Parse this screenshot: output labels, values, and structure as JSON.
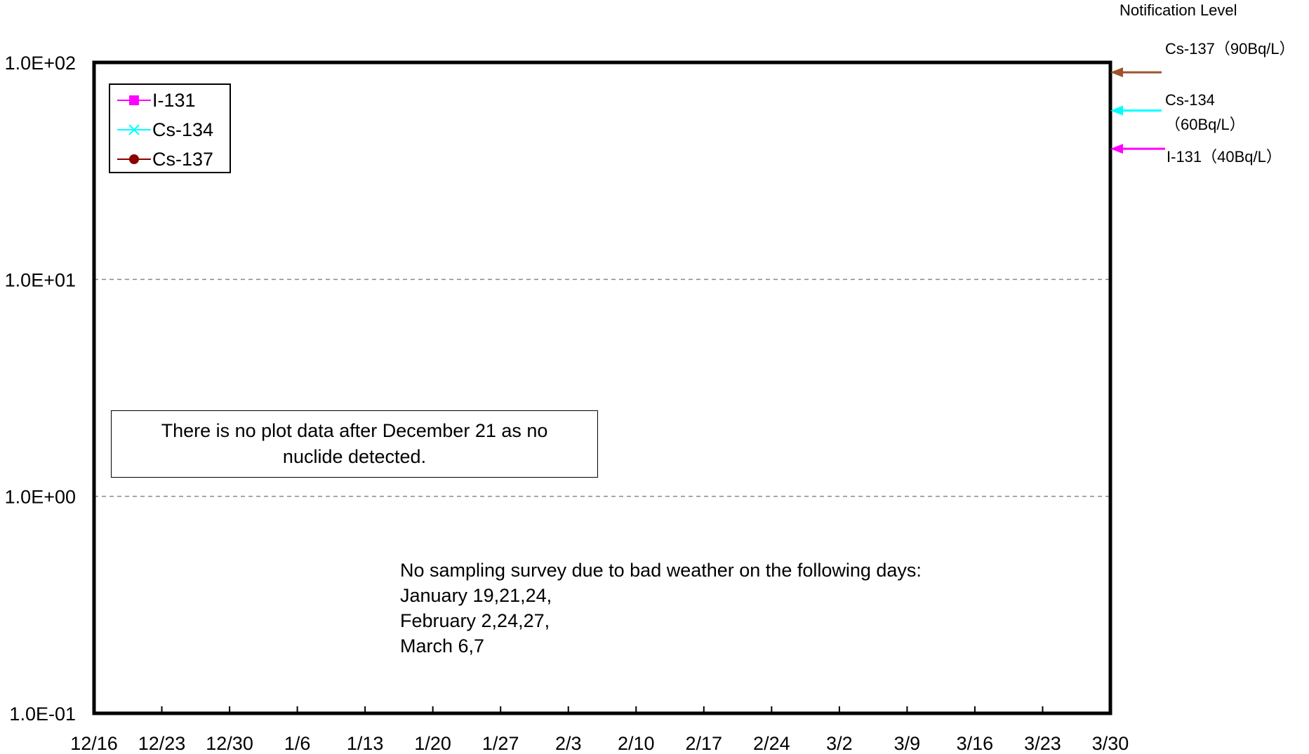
{
  "chart_data": {
    "type": "line",
    "scale": "log",
    "ylim": [
      0.1,
      100
    ],
    "y_ticks": [
      "1.0E-01",
      "1.0E+00",
      "1.0E+01",
      "1.0E+02"
    ],
    "x_ticks": [
      "12/16",
      "12/23",
      "12/30",
      "1/6",
      "1/13",
      "1/20",
      "1/27",
      "2/3",
      "2/10",
      "2/17",
      "2/24",
      "3/2",
      "3/9",
      "3/16",
      "3/23",
      "3/30"
    ],
    "grid": "horizontal dashed",
    "series": [
      {
        "name": "I-131",
        "color": "#ff00ff",
        "marker": "square",
        "values": []
      },
      {
        "name": "Cs-134",
        "color": "#00ffff",
        "marker": "x",
        "values": []
      },
      {
        "name": "Cs-137",
        "color": "#8b0000",
        "marker": "circle",
        "values": []
      }
    ],
    "legend": "top-left",
    "notification_levels": {
      "title": "Notification Level",
      "items": [
        {
          "label": "Cs-137（90Bq/L）",
          "value": 90,
          "color": "#a0522d"
        },
        {
          "label_line1": "Cs-134",
          "label_line2": "（60Bq/L）",
          "value": 60,
          "color": "#00ffff"
        },
        {
          "label": "I-131（40Bq/L）",
          "value": 40,
          "color": "#ff00ff"
        }
      ]
    },
    "annotations": {
      "no_data": "There is no plot data after December 21 as no nuclide detected.",
      "weather": [
        "No sampling survey due to bad weather on the following days:",
        "January 19,21,24,",
        "February 2,24,27,",
        "March 6,7"
      ]
    }
  }
}
